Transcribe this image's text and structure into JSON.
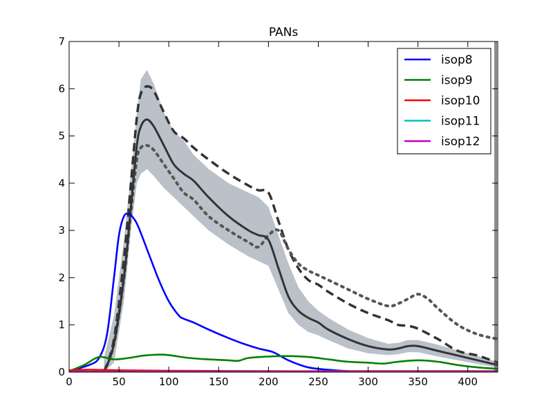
{
  "chart_data": {
    "type": "line",
    "title": "PANs",
    "xlabel": "",
    "ylabel": "",
    "xlim": [
      0,
      430
    ],
    "ylim": [
      0,
      7
    ],
    "xticks": [
      "0",
      "50",
      "100",
      "150",
      "200",
      "250",
      "300",
      "350",
      "400"
    ],
    "yticks": [
      "0",
      "1",
      "2",
      "3",
      "4",
      "5",
      "6",
      "7"
    ],
    "legend_position": "top-right",
    "series": [
      {
        "name": "isop8",
        "color": "#0000ff",
        "x": [
          0,
          20,
          30,
          38,
          45,
          50,
          55,
          60,
          65,
          70,
          80,
          90,
          100,
          110,
          115,
          125,
          140,
          160,
          175,
          190,
          205,
          220,
          240,
          260,
          280,
          300
        ],
        "y": [
          0.02,
          0.15,
          0.3,
          0.8,
          2.0,
          2.9,
          3.3,
          3.35,
          3.25,
          3.05,
          2.5,
          1.95,
          1.5,
          1.2,
          1.13,
          1.05,
          0.9,
          0.72,
          0.6,
          0.5,
          0.42,
          0.25,
          0.1,
          0.05,
          0.02,
          0.01
        ]
      },
      {
        "name": "isop9",
        "color": "#008000",
        "x": [
          0,
          15,
          30,
          45,
          60,
          75,
          90,
          100,
          120,
          140,
          160,
          170,
          180,
          200,
          220,
          240,
          260,
          280,
          300,
          315,
          330,
          350,
          370,
          390,
          410,
          430
        ],
        "y": [
          0.02,
          0.15,
          0.32,
          0.27,
          0.3,
          0.35,
          0.37,
          0.36,
          0.3,
          0.27,
          0.25,
          0.24,
          0.3,
          0.33,
          0.34,
          0.32,
          0.27,
          0.22,
          0.2,
          0.18,
          0.22,
          0.25,
          0.22,
          0.15,
          0.1,
          0.07
        ]
      },
      {
        "name": "isop10",
        "color": "#ff0000",
        "x": [
          0,
          20,
          50,
          100,
          200,
          300,
          430
        ],
        "y": [
          0.04,
          0.05,
          0.04,
          0.03,
          0.02,
          0.02,
          0.02
        ]
      },
      {
        "name": "isop11",
        "color": "#00bfbf",
        "x": [
          0,
          100,
          200,
          300,
          430
        ],
        "y": [
          0.01,
          0.01,
          0.01,
          0.01,
          0.01
        ]
      },
      {
        "name": "isop12",
        "color": "#bf00bf",
        "x": [
          0,
          100,
          200,
          300,
          430
        ],
        "y": [
          0.005,
          0.005,
          0.005,
          0.005,
          0.005
        ]
      }
    ],
    "observations": {
      "color": "#333333",
      "band_color": "#b3bac3",
      "mean": {
        "x": [
          35,
          45,
          55,
          62,
          68,
          72,
          78,
          85,
          95,
          105,
          115,
          125,
          140,
          160,
          180,
          190,
          200,
          210,
          220,
          230,
          240,
          250,
          260,
          280,
          300,
          320,
          330,
          340,
          350,
          370,
          390,
          410,
          430
        ],
        "y": [
          0.0,
          0.6,
          2.0,
          3.5,
          4.8,
          5.2,
          5.35,
          5.2,
          4.8,
          4.4,
          4.2,
          4.05,
          3.7,
          3.3,
          3.0,
          2.9,
          2.8,
          2.2,
          1.6,
          1.3,
          1.15,
          1.05,
          0.9,
          0.7,
          0.55,
          0.48,
          0.5,
          0.55,
          0.55,
          0.45,
          0.35,
          0.25,
          0.15
        ]
      },
      "band_upper": [
        0.3,
        1.2,
        2.8,
        4.2,
        5.5,
        6.2,
        6.4,
        6.1,
        5.5,
        5.1,
        4.9,
        4.6,
        4.3,
        4.0,
        3.8,
        3.7,
        3.5,
        2.9,
        2.3,
        1.8,
        1.5,
        1.3,
        1.15,
        0.9,
        0.72,
        0.6,
        0.62,
        0.68,
        0.68,
        0.58,
        0.46,
        0.34,
        0.22
      ],
      "band_lower": [
        0.0,
        0.2,
        1.5,
        3.0,
        4.0,
        4.2,
        4.3,
        4.15,
        3.9,
        3.7,
        3.5,
        3.3,
        3.0,
        2.7,
        2.45,
        2.35,
        2.25,
        1.75,
        1.25,
        1.0,
        0.85,
        0.78,
        0.68,
        0.5,
        0.4,
        0.36,
        0.38,
        0.42,
        0.42,
        0.33,
        0.25,
        0.17,
        0.1
      ],
      "dashed": {
        "x": [
          35,
          45,
          55,
          62,
          68,
          72,
          78,
          85,
          95,
          105,
          115,
          125,
          140,
          160,
          180,
          190,
          200,
          210,
          220,
          230,
          240,
          250,
          260,
          280,
          300,
          320,
          330,
          340,
          350,
          370,
          390,
          410,
          430
        ],
        "y": [
          0.0,
          0.7,
          2.4,
          4.0,
          5.4,
          5.9,
          6.05,
          5.95,
          5.5,
          5.1,
          4.95,
          4.75,
          4.5,
          4.2,
          3.95,
          3.85,
          3.8,
          3.2,
          2.6,
          2.2,
          1.95,
          1.85,
          1.7,
          1.45,
          1.25,
          1.1,
          1.0,
          0.98,
          0.92,
          0.7,
          0.45,
          0.35,
          0.2
        ]
      },
      "dotted": {
        "x": [
          35,
          45,
          55,
          62,
          68,
          72,
          78,
          85,
          95,
          105,
          115,
          125,
          140,
          160,
          180,
          190,
          200,
          210,
          220,
          230,
          240,
          250,
          260,
          280,
          300,
          320,
          330,
          340,
          350,
          360,
          370,
          390,
          410,
          430
        ],
        "y": [
          0.0,
          0.6,
          2.0,
          3.4,
          4.5,
          4.75,
          4.8,
          4.7,
          4.4,
          4.1,
          3.8,
          3.65,
          3.3,
          3.0,
          2.75,
          2.65,
          2.9,
          3.0,
          2.6,
          2.3,
          2.15,
          2.05,
          1.95,
          1.75,
          1.55,
          1.4,
          1.45,
          1.55,
          1.65,
          1.55,
          1.35,
          1.0,
          0.8,
          0.7
        ]
      }
    }
  }
}
